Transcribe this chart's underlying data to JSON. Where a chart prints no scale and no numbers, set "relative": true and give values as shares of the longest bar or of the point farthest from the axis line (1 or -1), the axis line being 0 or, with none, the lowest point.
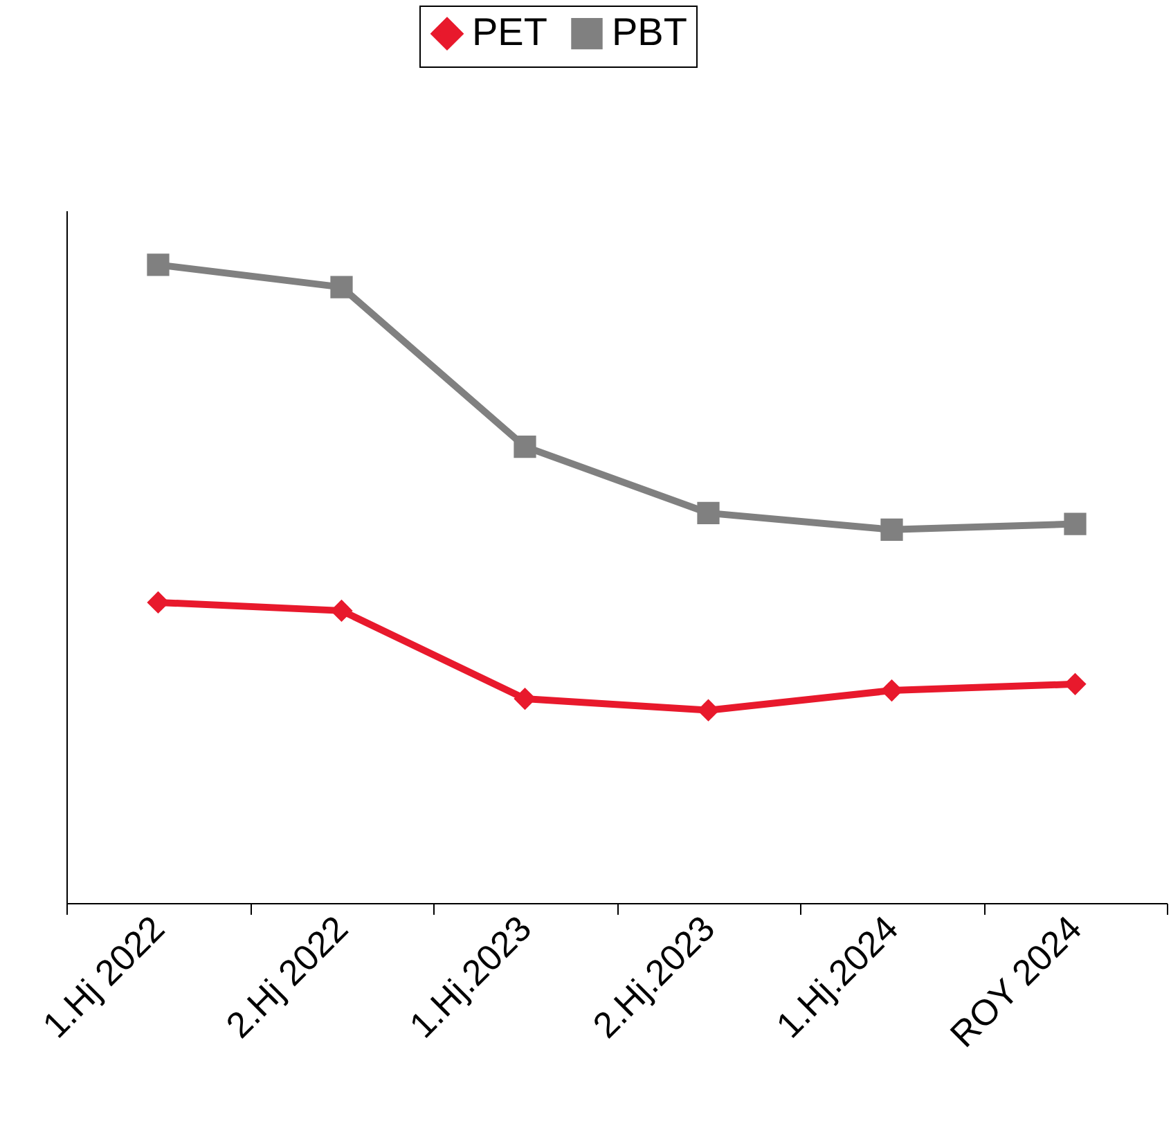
{
  "chart_data": {
    "type": "line",
    "relative": true,
    "categories": [
      "1.Hj 2022",
      "2.Hj 2022",
      "1.Hj.2023",
      "2.Hj.2023",
      "1.Hj.2024",
      "ROY 2024"
    ],
    "series": [
      {
        "name": "PET",
        "color": "#e8192c",
        "marker": "diamond",
        "values": [
          0.471,
          0.458,
          0.32,
          0.302,
          0.333,
          0.343
        ]
      },
      {
        "name": "PBT",
        "color": "#808080",
        "marker": "square",
        "values": [
          1,
          0.965,
          0.715,
          0.611,
          0.585,
          0.594
        ]
      }
    ],
    "legend": "top",
    "grid": false,
    "line_style": "solid"
  }
}
